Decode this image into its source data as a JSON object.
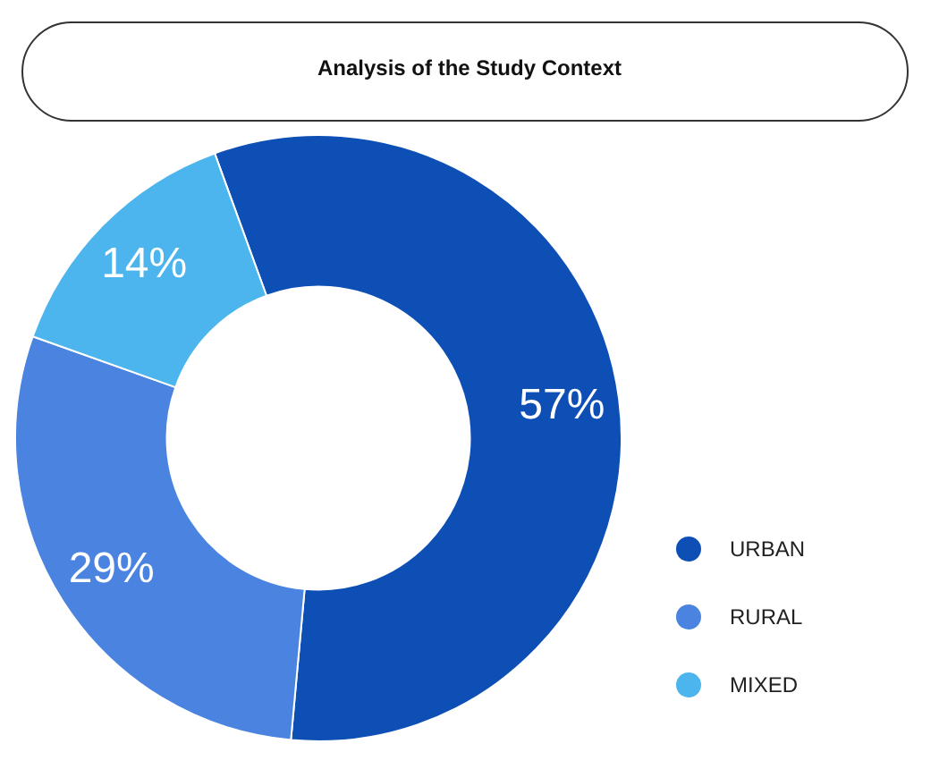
{
  "chart_data": {
    "type": "donut",
    "title": "Analysis of the Study Context",
    "categories": [
      "URBAN",
      "RURAL",
      "MIXED"
    ],
    "values": [
      57,
      29,
      14
    ],
    "colors": [
      "#0d4fb5",
      "#4a84e0",
      "#4db5ee"
    ],
    "value_labels": [
      "57%",
      "29%",
      "14%"
    ],
    "legend": "bottom right"
  }
}
